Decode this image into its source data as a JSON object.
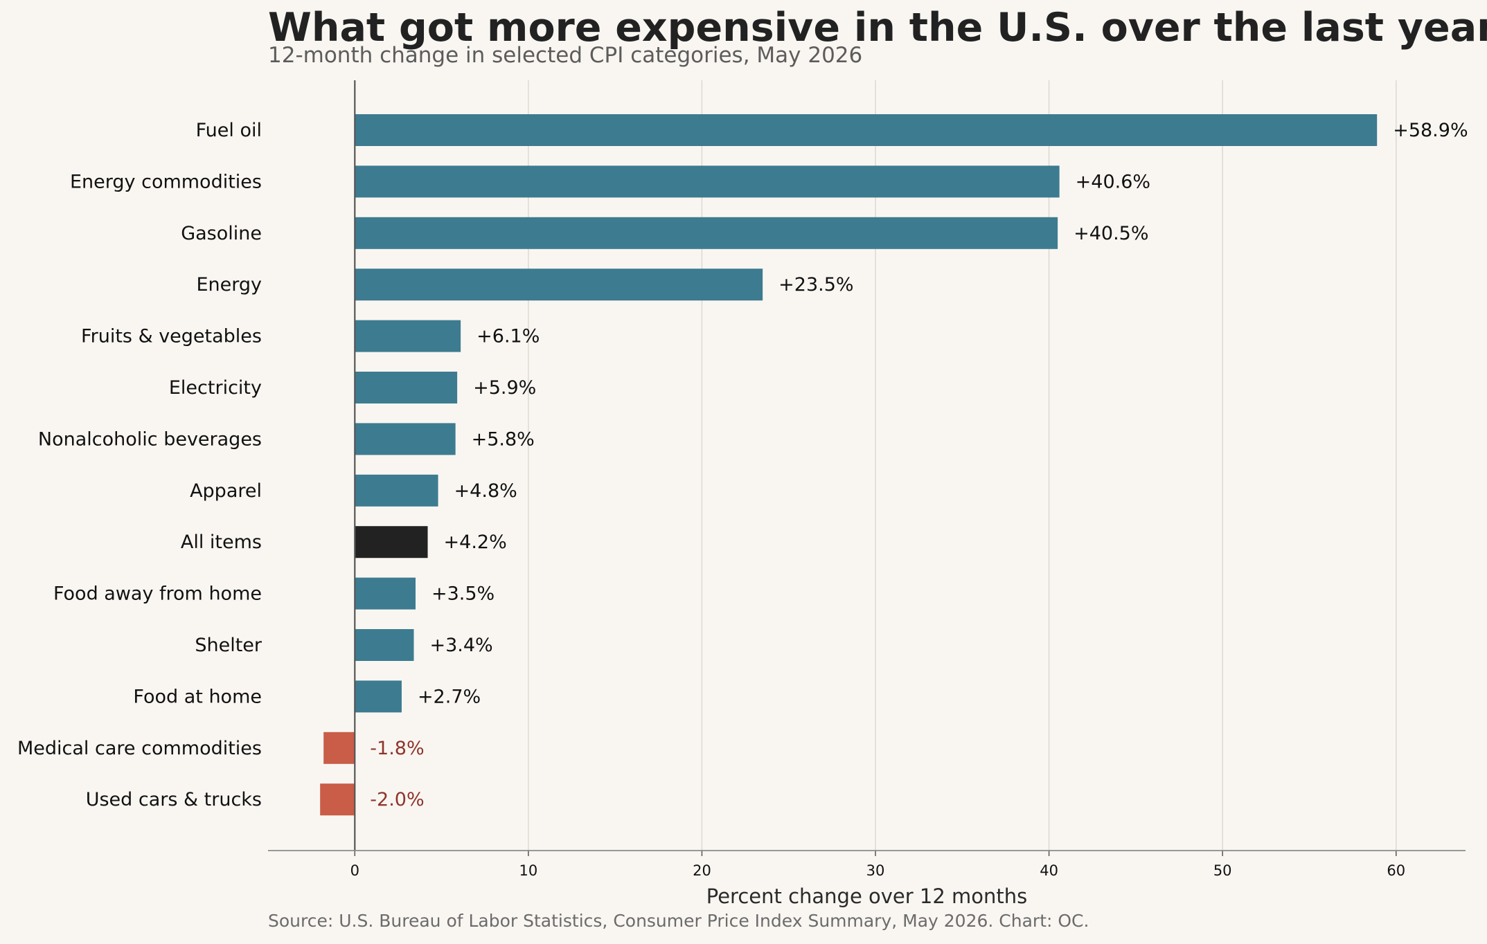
{
  "title": "What got more expensive in the U.S. over the last year?",
  "subtitle": "12-month change in selected CPI categories, May 2026",
  "source": "Source: U.S. Bureau of Labor Statistics, Consumer Price Index Summary, May 2026. Chart: OC.",
  "colors": {
    "positive": "#3d7b90",
    "highlight": "#222222",
    "negative": "#c95d48",
    "negative_label": "#8e352a",
    "background": "#f9f6f2",
    "grid": "#dcd8d2"
  },
  "chart_data": {
    "type": "bar",
    "orientation": "horizontal",
    "title": "What got more expensive in the U.S. over the last year?",
    "subtitle": "12-month change in selected CPI categories, May 2026",
    "xlabel": "Percent change over 12 months",
    "ylabel": "",
    "xlim": [
      -5,
      64
    ],
    "xticks": [
      0,
      10,
      20,
      30,
      40,
      50,
      60
    ],
    "grid": "vertical",
    "highlight_category": "All items",
    "categories": [
      "Fuel oil",
      "Energy commodities",
      "Gasoline",
      "Energy",
      "Fruits & vegetables",
      "Electricity",
      "Nonalcoholic beverages",
      "Apparel",
      "All items",
      "Food away from home",
      "Shelter",
      "Food at home",
      "Medical care commodities",
      "Used cars & trucks"
    ],
    "values": [
      58.9,
      40.6,
      40.5,
      23.5,
      6.1,
      5.9,
      5.8,
      4.8,
      4.2,
      3.5,
      3.4,
      2.7,
      -1.8,
      -2.0
    ],
    "data_labels": [
      "+58.9%",
      "+40.6%",
      "+40.5%",
      "+23.5%",
      "+6.1%",
      "+5.9%",
      "+5.8%",
      "+4.8%",
      "+4.2%",
      "+3.5%",
      "+3.4%",
      "+2.7%",
      "-1.8%",
      "-2.0%"
    ]
  }
}
